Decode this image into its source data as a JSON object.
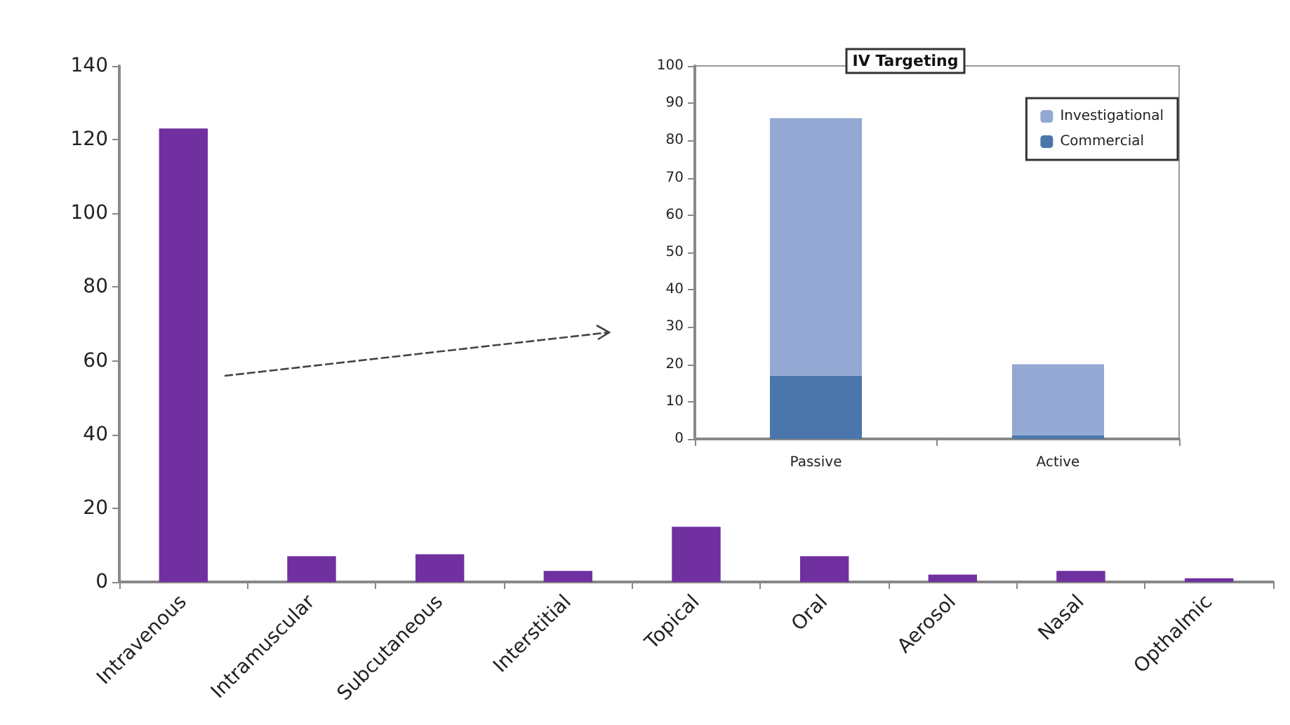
{
  "chart_data": [
    {
      "type": "bar",
      "categories": [
        "Intravenous",
        "Intramuscular",
        "Subcutaneous",
        "Interstitial",
        "Topical",
        "Oral",
        "Aerosol",
        "Nasal",
        "Opthalmic"
      ],
      "values": [
        123,
        7,
        7.5,
        3,
        15,
        7,
        2,
        3,
        1
      ],
      "color": "#7030a0",
      "ylim": [
        0,
        140
      ],
      "yticks": [
        0,
        20,
        40,
        60,
        80,
        100,
        120,
        140
      ],
      "grid": false,
      "legend": false
    },
    {
      "type": "bar",
      "title": "IV Targeting",
      "categories": [
        "Passive",
        "Active"
      ],
      "stacked": true,
      "series": [
        {
          "name": "Commercial",
          "color": "#4a76ab",
          "values": [
            17,
            1
          ]
        },
        {
          "name": "Investigational",
          "color": "#93a9d3",
          "values": [
            69,
            19
          ]
        }
      ],
      "ylim": [
        0,
        100
      ],
      "yticks": [
        0,
        10,
        20,
        30,
        40,
        50,
        60,
        70,
        80,
        90,
        100
      ],
      "grid": false,
      "legend": "top right"
    }
  ]
}
